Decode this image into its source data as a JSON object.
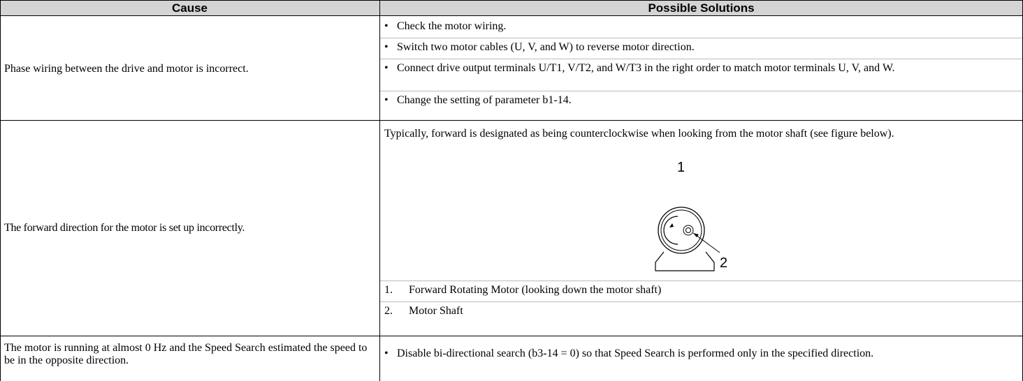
{
  "table": {
    "header": [
      "Cause",
      "Possible Solutions"
    ],
    "rows": [
      {
        "cause": "Phase wiring between the drive and motor is incorrect.",
        "bullet": "•",
        "solutions": [
          "Check the motor wiring.",
          "Switch two motor cables (U, V, and W) to reverse motor direction.",
          "Connect drive output terminals U/T1, V/T2, and W/T3 in the right order to match motor terminals U, V, and W.",
          "Change the setting of parameter b1-14."
        ]
      },
      {
        "cause": "The forward direction for the motor is set up incorrectly.",
        "intro": "Typically, forward is designated as being counterclockwise when looking from the motor shaft (see figure below).",
        "figure_labels": [
          "1",
          "2"
        ],
        "legend": [
          {
            "num": "1.",
            "text": "Forward Rotating Motor (looking down the motor shaft)"
          },
          {
            "num": "2.",
            "text": "Motor Shaft"
          }
        ]
      },
      {
        "cause": "The motor is running at almost 0 Hz and the Speed Search estimated the speed to be in the opposite direction.",
        "bullet": "•",
        "solutions": [
          "Disable bi-directional search (b3-14 = 0) so that Speed Search is performed only in the specified direction."
        ]
      }
    ]
  }
}
